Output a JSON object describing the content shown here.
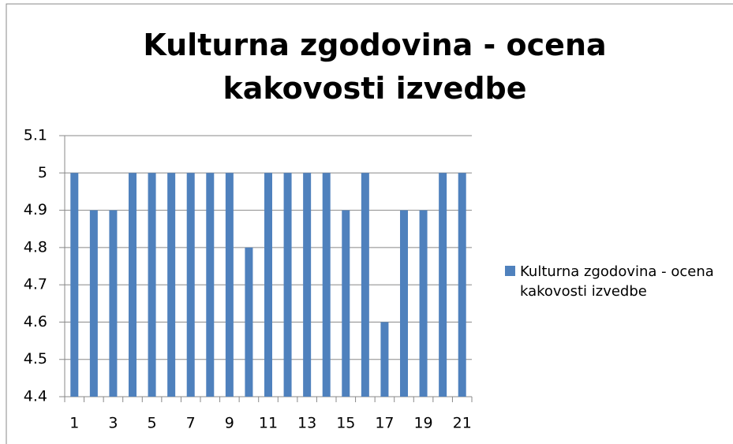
{
  "chart_data": {
    "type": "bar",
    "title": "Kulturna zgodovina - ocena kakovosti izvedbe",
    "categories": [
      "1",
      null,
      "3",
      null,
      "5",
      null,
      "7",
      null,
      "9",
      null,
      "11",
      null,
      "13",
      null,
      "15",
      null,
      "17",
      null,
      "19",
      null,
      "21"
    ],
    "series": [
      {
        "name": "Kulturna zgodovina - ocena kakovosti izvedbe",
        "color": "#4f81bd",
        "values": [
          5,
          4.9,
          4.9,
          5,
          5,
          5,
          5,
          5,
          5,
          4.8,
          5,
          5,
          5,
          5,
          4.9,
          5,
          4.6,
          4.9,
          4.9,
          5,
          5
        ]
      }
    ],
    "ylim": [
      4.4,
      5.1
    ],
    "yticks": [
      4.4,
      4.5,
      4.6,
      4.7,
      4.8,
      4.9,
      5,
      5.1
    ],
    "grid": true,
    "legend": "right"
  }
}
